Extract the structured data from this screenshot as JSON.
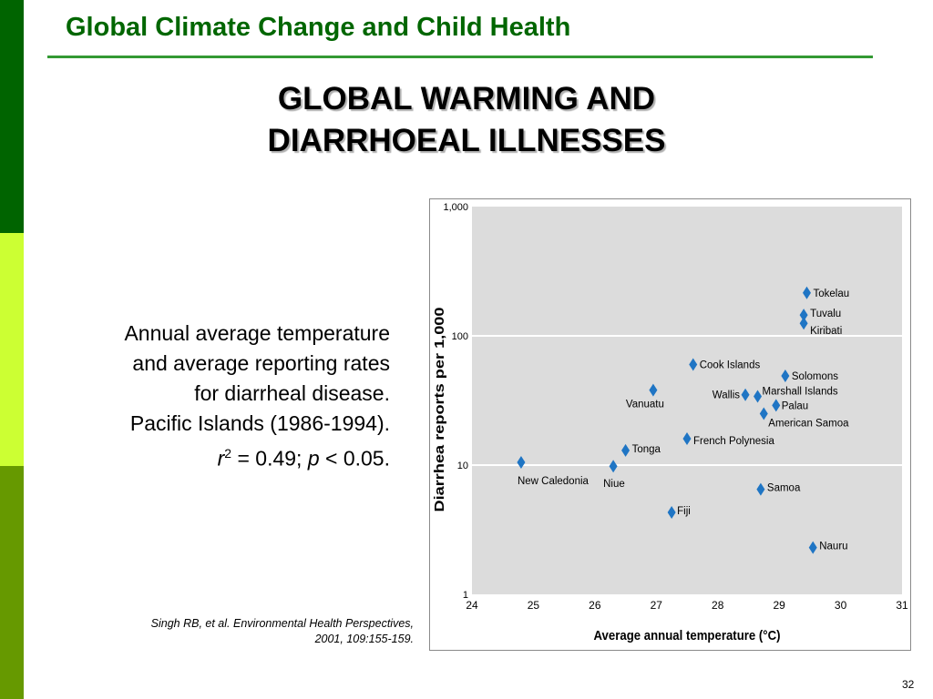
{
  "header": {
    "title": "Global Climate Change and Child Health"
  },
  "slide": {
    "title_line1": "GLOBAL WARMING AND",
    "title_line2": "DIARRHOEAL ILLNESSES"
  },
  "description": {
    "line1": "Annual average temperature",
    "line2": "and average reporting rates",
    "line3": "for diarrheal disease.",
    "line4": "Pacific Islands (1986-1994).",
    "stat_r": "r",
    "stat_sup": "2",
    "stat_mid": " = 0.49; ",
    "stat_p": "p",
    "stat_end": " < 0.05."
  },
  "citation": {
    "line1": "Singh RB, et al. Environmental Health Perspectives,",
    "line2": "2001, 109:155-159."
  },
  "page_number": "32",
  "colors": {
    "sidebar_dark": "#006400",
    "sidebar_lime": "#ccff33",
    "sidebar_olive": "#669900",
    "header_text": "#006600",
    "header_rule": "#339933",
    "plot_background": "#dcdcdc",
    "marker": "#1f75c4"
  },
  "chart_data": {
    "type": "scatter",
    "xlabel": "Average annual temperature (°C)",
    "ylabel": "Diarrhea reports per 1,000",
    "xlim": [
      24,
      31
    ],
    "ylim": [
      1,
      1000
    ],
    "yscale": "log",
    "x_ticks": [
      "24",
      "25",
      "26",
      "27",
      "28",
      "29",
      "30",
      "31"
    ],
    "y_ticks": [
      "1",
      "10",
      "100",
      "1,000"
    ],
    "grid": "horizontal",
    "marker": "diamond",
    "points": [
      {
        "label": "Tokelau",
        "x": 29.45,
        "y": 215
      },
      {
        "label": "Tuvalu",
        "x": 29.4,
        "y": 145
      },
      {
        "label": "Kiribati",
        "x": 29.4,
        "y": 125
      },
      {
        "label": "Cook Islands",
        "x": 27.6,
        "y": 60
      },
      {
        "label": "Solomons",
        "x": 29.1,
        "y": 49
      },
      {
        "label": "Marshall Islands",
        "x": 28.65,
        "y": 34
      },
      {
        "label": "Wallis",
        "x": 28.45,
        "y": 35
      },
      {
        "label": "Palau",
        "x": 28.95,
        "y": 29
      },
      {
        "label": "American Samoa",
        "x": 28.75,
        "y": 25
      },
      {
        "label": "Vanuatu",
        "x": 26.95,
        "y": 38
      },
      {
        "label": "French Polynesia",
        "x": 27.5,
        "y": 16
      },
      {
        "label": "Tonga",
        "x": 26.5,
        "y": 13
      },
      {
        "label": "New Caledonia",
        "x": 24.8,
        "y": 10.5
      },
      {
        "label": "Niue",
        "x": 26.3,
        "y": 9.8
      },
      {
        "label": "Samoa",
        "x": 28.7,
        "y": 6.5
      },
      {
        "label": "Fiji",
        "x": 27.25,
        "y": 4.3
      },
      {
        "label": "Nauru",
        "x": 29.55,
        "y": 2.3
      }
    ]
  }
}
